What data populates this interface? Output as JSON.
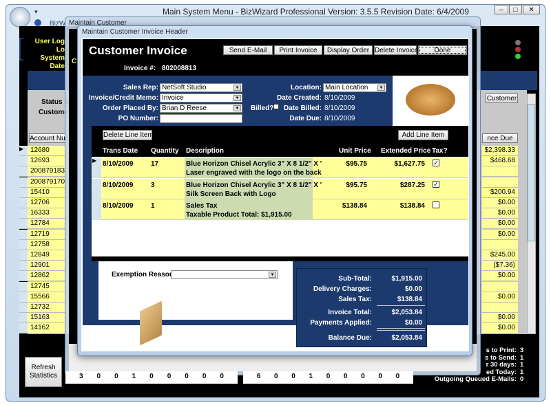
{
  "main_window": {
    "title": "Main System Menu - BizWizard Professional  Version: 3.5.5  Revision Date: 6/4/2009",
    "tab": "BizW",
    "labels": [
      "User Log",
      "Lo",
      "System Date"
    ],
    "status_label": "Status S",
    "customer_label": "Custome",
    "account_col": "Account Num",
    "balance_col": "nce Due",
    "customer_btn": "Customer",
    "cu_label": "Cu",
    "a_label": "A"
  },
  "accounts": [
    {
      "acct": "12680",
      "bal": "$2,398.33"
    },
    {
      "acct": "12693",
      "bal": "$468.68"
    },
    {
      "acct": "200879183",
      "bal": ""
    },
    {
      "acct": "200879170",
      "bal": ""
    },
    {
      "acct": "15410",
      "bal": "$200.94"
    },
    {
      "acct": "12706",
      "bal": "$0.00"
    },
    {
      "acct": "16333",
      "bal": "$0.00"
    },
    {
      "acct": "12784",
      "bal": "$0.00"
    },
    {
      "acct": "12719",
      "bal": "$0.00"
    },
    {
      "acct": "12758",
      "bal": ""
    },
    {
      "acct": "12849",
      "bal": "$245.00"
    },
    {
      "acct": "12901",
      "bal": "($7.36)"
    },
    {
      "acct": "12862",
      "bal": "$0.00"
    },
    {
      "acct": "12745",
      "bal": ""
    },
    {
      "acct": "15566",
      "bal": "$0.00"
    },
    {
      "acct": "12732",
      "bal": ""
    },
    {
      "acct": "15163",
      "bal": "$0.00"
    },
    {
      "acct": "14162",
      "bal": "$0.00"
    }
  ],
  "maintain_customer": {
    "title": "Maintain Customer"
  },
  "dialog": {
    "title": "Maintain Customer Invoice Header",
    "heading": "Customer Invoice",
    "buttons": [
      "Send E-Mail",
      "Print Invoice",
      "Display Order",
      "Delete Invoice",
      "Done"
    ],
    "invoice_label": "Invoice #:",
    "invoice_no": "802008813",
    "sales_rep_label": "Sales Rep:",
    "sales_rep": "NetSoft Studio",
    "memo_label": "Invoice/Credit Memo:",
    "memo": "Invoice",
    "placed_label": "Order Placed By:",
    "placed": "Brian D Reese",
    "po_label": "PO Number:",
    "po": "",
    "billed_label": "Billed?",
    "billed": false,
    "location_label": "Location:",
    "location": "Main Location",
    "created_label": "Date Created:",
    "created": "8/10/2009",
    "billed_date_label": "Date Billed:",
    "billed_date": "8/10/2009",
    "due_label": "Date Due:",
    "due": "8/10/2009",
    "delete_line": "Delete Line Item",
    "add_line": "Add Line Item",
    "columns": [
      "Trans Date",
      "Quantity",
      "Description",
      "Unit Price",
      "Extended Price",
      "Tax?"
    ],
    "lines": [
      {
        "date": "8/10/2009",
        "qty": "17",
        "desc1": "Blue Horizon Chisel Acrylic 3\" X 8 1/2\" X '",
        "desc2": "Laser engraved with the logo on the back",
        "unit": "$95.75",
        "ext": "$1,627.75",
        "tax": true
      },
      {
        "date": "8/10/2009",
        "qty": "3",
        "desc1": "Blue Horizon Chisel Acrylic 3\" X 8 1/2\" X '",
        "desc2": "Silk Screen Back with Logo",
        "unit": "$95.75",
        "ext": "$287.25",
        "tax": true
      },
      {
        "date": "8/10/2009",
        "qty": "1",
        "desc1": "Sales Tax",
        "desc2": "Taxable Product Total: $1,915.00",
        "unit": "$138.84",
        "ext": "$138.84",
        "tax": false
      }
    ],
    "exemption_label": "Exemption Reason:",
    "exemption": "",
    "totals": [
      {
        "label": "Sub-Total:",
        "value": "$1,915.00"
      },
      {
        "label": "Delivery Charges:",
        "value": "$0.00"
      },
      {
        "label": "Sales Tax:",
        "value": "$138.84"
      },
      {
        "label": "Invoice Total:",
        "value": "$2,053.84"
      },
      {
        "label": "Payments Applied:",
        "value": "$0.00"
      },
      {
        "label": "Balance Due:",
        "value": "$2,053.84"
      }
    ]
  },
  "bottom": {
    "refresh": "Refresh Statistics",
    "stats1": [
      "3",
      "0",
      "0",
      "1",
      "0",
      "0",
      "0",
      "0",
      "0"
    ],
    "stats2": [
      "6",
      "0",
      "0",
      "1",
      "0",
      "0",
      "0",
      "0",
      "0"
    ],
    "right_stats": [
      {
        "label": "s to Print:",
        "value": "3"
      },
      {
        "label": "s to Send:",
        "value": "1"
      },
      {
        "label": "r 30 days:",
        "value": "1"
      },
      {
        "label": "ed Today:",
        "value": "1"
      },
      {
        "label": "Outgoing Queued E-Mails:",
        "value": "0"
      }
    ]
  }
}
